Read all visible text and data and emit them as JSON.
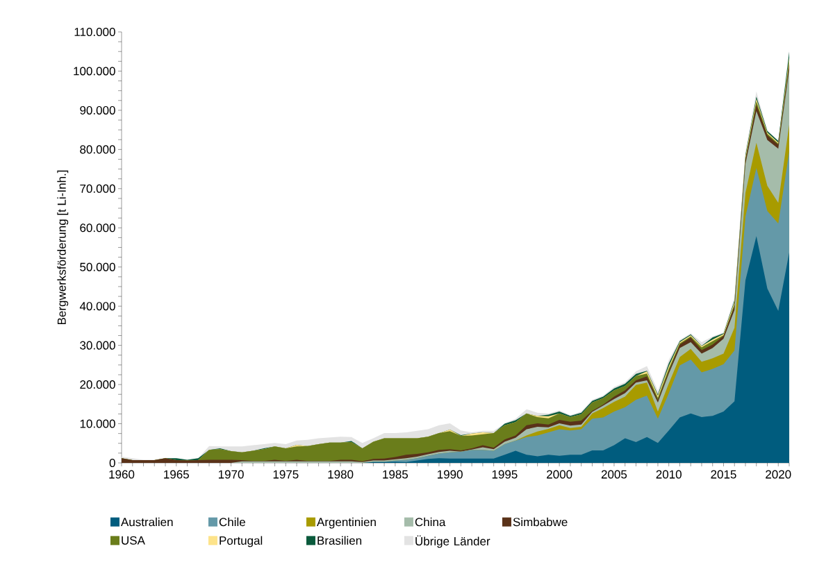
{
  "chart_data": {
    "type": "area",
    "stacked": true,
    "ylabel": "Bergwerksförderung [t Li-Inh.]",
    "legend": "bottom",
    "x": [
      1960,
      1961,
      1962,
      1963,
      1964,
      1965,
      1966,
      1967,
      1968,
      1969,
      1970,
      1971,
      1972,
      1973,
      1974,
      1975,
      1976,
      1977,
      1978,
      1979,
      1980,
      1981,
      1982,
      1983,
      1984,
      1985,
      1986,
      1987,
      1988,
      1989,
      1990,
      1991,
      1992,
      1993,
      1994,
      1995,
      1996,
      1997,
      1998,
      1999,
      2000,
      2001,
      2002,
      2003,
      2004,
      2005,
      2006,
      2007,
      2008,
      2009,
      2010,
      2011,
      2012,
      2013,
      2014,
      2015,
      2016,
      2017,
      2018,
      2019,
      2020,
      2021
    ],
    "xlim": [
      1960,
      2021
    ],
    "xticks": [
      1960,
      {
        "value": 1961,
        "label": null
      },
      {
        "value": 1962,
        "label": null
      },
      {
        "value": 1963,
        "label": null
      },
      {
        "value": 1964,
        "label": null
      },
      1965,
      {
        "value": 1966,
        "label": null
      },
      {
        "value": 1967,
        "label": null
      },
      {
        "value": 1968,
        "label": null
      },
      {
        "value": 1969,
        "label": null
      },
      1970,
      {
        "value": 1971,
        "label": null
      },
      {
        "value": 1972,
        "label": null
      },
      {
        "value": 1973,
        "label": null
      },
      {
        "value": 1974,
        "label": null
      },
      1975,
      {
        "value": 1976,
        "label": null
      },
      {
        "value": 1977,
        "label": null
      },
      {
        "value": 1978,
        "label": null
      },
      {
        "value": 1979,
        "label": null
      },
      1980,
      {
        "value": 1981,
        "label": null
      },
      {
        "value": 1982,
        "label": null
      },
      {
        "value": 1983,
        "label": null
      },
      {
        "value": 1984,
        "label": null
      },
      1985,
      {
        "value": 1986,
        "label": null
      },
      {
        "value": 1987,
        "label": null
      },
      {
        "value": 1988,
        "label": null
      },
      {
        "value": 1989,
        "label": null
      },
      1990,
      {
        "value": 1991,
        "label": null
      },
      {
        "value": 1992,
        "label": null
      },
      {
        "value": 1993,
        "label": null
      },
      {
        "value": 1994,
        "label": null
      },
      1995,
      {
        "value": 1996,
        "label": null
      },
      {
        "value": 1997,
        "label": null
      },
      {
        "value": 1998,
        "label": null
      },
      {
        "value": 1999,
        "label": null
      },
      2000,
      {
        "value": 2001,
        "label": null
      },
      {
        "value": 2002,
        "label": null
      },
      {
        "value": 2003,
        "label": null
      },
      {
        "value": 2004,
        "label": null
      },
      2005,
      {
        "value": 2006,
        "label": null
      },
      {
        "value": 2007,
        "label": null
      },
      {
        "value": 2008,
        "label": null
      },
      {
        "value": 2009,
        "label": null
      },
      2010,
      {
        "value": 2011,
        "label": null
      },
      {
        "value": 2012,
        "label": null
      },
      {
        "value": 2013,
        "label": null
      },
      {
        "value": 2014,
        "label": null
      },
      2015,
      {
        "value": 2016,
        "label": null
      },
      {
        "value": 2017,
        "label": null
      },
      {
        "value": 2018,
        "label": null
      },
      {
        "value": 2019,
        "label": null
      },
      2020,
      {
        "value": 2021,
        "label": null
      }
    ],
    "ylim": [
      0,
      110000
    ],
    "yticks": [
      0,
      {
        "value": 2500,
        "label": null
      },
      {
        "value": 5000,
        "label": null
      },
      {
        "value": 7500,
        "label": null
      },
      {
        "value": 10000,
        "label": "10.000"
      },
      {
        "value": 12500,
        "label": null
      },
      {
        "value": 15000,
        "label": null
      },
      {
        "value": 17500,
        "label": null
      },
      {
        "value": 20000,
        "label": "20.000"
      },
      {
        "value": 22500,
        "label": null
      },
      {
        "value": 25000,
        "label": null
      },
      {
        "value": 27500,
        "label": null
      },
      {
        "value": 30000,
        "label": "30.000"
      },
      {
        "value": 32500,
        "label": null
      },
      {
        "value": 35000,
        "label": null
      },
      {
        "value": 37500,
        "label": null
      },
      {
        "value": 40000,
        "label": "40.000"
      },
      {
        "value": 42500,
        "label": null
      },
      {
        "value": 45000,
        "label": null
      },
      {
        "value": 47500,
        "label": null
      },
      {
        "value": 50000,
        "label": "50.000"
      },
      {
        "value": 52500,
        "label": null
      },
      {
        "value": 55000,
        "label": null
      },
      {
        "value": 57500,
        "label": null
      },
      {
        "value": 60000,
        "label": "60.000"
      },
      {
        "value": 62500,
        "label": null
      },
      {
        "value": 65000,
        "label": null
      },
      {
        "value": 67500,
        "label": null
      },
      {
        "value": 70000,
        "label": "70.000"
      },
      {
        "value": 72500,
        "label": null
      },
      {
        "value": 75000,
        "label": null
      },
      {
        "value": 77500,
        "label": null
      },
      {
        "value": 80000,
        "label": "80.000"
      },
      {
        "value": 82500,
        "label": null
      },
      {
        "value": 85000,
        "label": null
      },
      {
        "value": 87500,
        "label": null
      },
      {
        "value": 90000,
        "label": "90.000"
      },
      {
        "value": 92500,
        "label": null
      },
      {
        "value": 95000,
        "label": null
      },
      {
        "value": 97500,
        "label": null
      },
      {
        "value": 100000,
        "label": "100.000"
      },
      {
        "value": 102500,
        "label": null
      },
      {
        "value": 105000,
        "label": null
      },
      {
        "value": 107500,
        "label": null
      },
      {
        "value": 110000,
        "label": "110.000"
      }
    ],
    "series": [
      {
        "name": "Australien",
        "color": "#005c7e",
        "values": [
          0,
          0,
          0,
          0,
          0,
          0,
          0,
          0,
          0,
          0,
          0,
          0,
          0,
          0,
          0,
          0,
          0,
          0,
          0,
          0,
          0,
          0,
          0,
          200,
          200,
          300,
          200,
          600,
          1000,
          1200,
          1100,
          1100,
          1100,
          1100,
          1100,
          2100,
          3100,
          2100,
          1700,
          2100,
          1800,
          2100,
          2100,
          3200,
          3200,
          4500,
          6300,
          5300,
          6600,
          5100,
          8300,
          11600,
          12600,
          11700,
          12000,
          13100,
          15700,
          46600,
          57900,
          44500,
          38800,
          53700
        ]
      },
      {
        "name": "Chile",
        "color": "#6499a8",
        "values": [
          0,
          0,
          0,
          0,
          0,
          0,
          0,
          0,
          0,
          0,
          0,
          0,
          0,
          0,
          0,
          0,
          0,
          0,
          0,
          0,
          0,
          0,
          0,
          100,
          100,
          300,
          600,
          600,
          800,
          1200,
          1600,
          1800,
          2200,
          2200,
          2000,
          2700,
          2600,
          4500,
          5300,
          5700,
          6800,
          6200,
          6500,
          8100,
          8400,
          8600,
          7900,
          10800,
          10600,
          6200,
          9500,
          13300,
          13800,
          11400,
          12000,
          12100,
          13000,
          16300,
          17400,
          19800,
          22300,
          25800
        ]
      },
      {
        "name": "Argentinien",
        "color": "#a89b00",
        "values": [
          0,
          0,
          0,
          0,
          0,
          0,
          0,
          0,
          0,
          0,
          0,
          0,
          0,
          0,
          0,
          0,
          0,
          0,
          0,
          0,
          0,
          0,
          0,
          0,
          0,
          0,
          0,
          0,
          0,
          0,
          0,
          0,
          0,
          0,
          0,
          0,
          0,
          400,
          1000,
          900,
          1000,
          600,
          600,
          1300,
          2400,
          2500,
          2700,
          3800,
          3300,
          1800,
          2500,
          2100,
          2700,
          2700,
          2700,
          2700,
          5800,
          6000,
          6400,
          6400,
          5300,
          6800
        ]
      },
      {
        "name": "China",
        "color": "#a5bcaa",
        "values": [
          0,
          0,
          0,
          0,
          0,
          0,
          0,
          0,
          0,
          0,
          0,
          400,
          400,
          400,
          400,
          400,
          400,
          400,
          400,
          400,
          400,
          400,
          200,
          300,
          300,
          300,
          400,
          400,
          400,
          400,
          400,
          0,
          100,
          700,
          400,
          600,
          700,
          1600,
          1200,
          400,
          500,
          600,
          600,
          400,
          600,
          700,
          900,
          600,
          600,
          2300,
          2500,
          2300,
          1700,
          2100,
          2600,
          3800,
          4500,
          7400,
          8100,
          11700,
          13800,
          14100
        ]
      },
      {
        "name": "Simbabwe",
        "color": "#5a3219",
        "values": [
          1200,
          700,
          700,
          700,
          1200,
          700,
          600,
          700,
          800,
          800,
          800,
          300,
          100,
          100,
          400,
          100,
          400,
          100,
          100,
          100,
          400,
          400,
          200,
          400,
          500,
          600,
          900,
          700,
          500,
          500,
          400,
          300,
          300,
          500,
          400,
          600,
          600,
          1000,
          900,
          700,
          900,
          1000,
          1000,
          300,
          300,
          600,
          700,
          600,
          1000,
          600,
          600,
          900,
          1200,
          900,
          900,
          700,
          1000,
          1000,
          1600,
          1200,
          1000,
          1200
        ]
      },
      {
        "name": "USA",
        "color": "#6a7d1b",
        "values": [
          0,
          0,
          0,
          0,
          0,
          0,
          0,
          0,
          2500,
          2700,
          2200,
          2000,
          2600,
          3000,
          3400,
          3200,
          3400,
          3800,
          4300,
          4700,
          4400,
          4500,
          3300,
          4400,
          5200,
          4800,
          4200,
          4000,
          4000,
          4300,
          4600,
          3700,
          3300,
          2800,
          3700,
          3600,
          3400,
          3000,
          1600,
          1600,
          1600,
          1200,
          1600,
          2100,
          1600,
          1600,
          1100,
          1100,
          700,
          600,
          700,
          300,
          300,
          700,
          900,
          200,
          500,
          400,
          900,
          400,
          300,
          900
        ]
      },
      {
        "name": "Portugal",
        "color": "#fde38a",
        "values": [
          0,
          0,
          0,
          0,
          0,
          0,
          0,
          0,
          0,
          0,
          0,
          0,
          0,
          0,
          0,
          0,
          400,
          0,
          0,
          0,
          0,
          0,
          0,
          0,
          0,
          0,
          0,
          0,
          0,
          0,
          400,
          0,
          500,
          500,
          0,
          0,
          0,
          0,
          300,
          500,
          0,
          0,
          0,
          0,
          0,
          0,
          0,
          0,
          600,
          600,
          600,
          300,
          300,
          300,
          400,
          300,
          600,
          500,
          600,
          300,
          300,
          900
        ]
      },
      {
        "name": "Brasilien",
        "color": "#0a5a3c",
        "values": [
          0,
          0,
          0,
          0,
          0,
          500,
          200,
          500,
          0,
          200,
          0,
          0,
          0,
          200,
          0,
          0,
          0,
          0,
          0,
          0,
          0,
          300,
          0,
          0,
          0,
          0,
          0,
          0,
          0,
          0,
          0,
          200,
          0,
          0,
          0,
          400,
          500,
          0,
          0,
          400,
          500,
          300,
          400,
          400,
          400,
          500,
          600,
          500,
          100,
          300,
          700,
          300,
          200,
          100,
          500,
          200,
          400,
          400,
          600,
          400,
          400,
          1500
        ]
      },
      {
        "name": "Übrige Länder",
        "color": "#e3e3e3",
        "values": [
          400,
          500,
          100,
          100,
          100,
          0,
          0,
          0,
          1000,
          500,
          1200,
          1500,
          1400,
          1100,
          900,
          1100,
          1100,
          1600,
          1500,
          1300,
          1500,
          1000,
          1400,
          900,
          1300,
          1300,
          1500,
          1900,
          1900,
          2000,
          1600,
          1200,
          300,
          400,
          600,
          100,
          400,
          1100,
          800,
          300,
          300,
          200,
          300,
          300,
          300,
          400,
          400,
          700,
          1200,
          900,
          900,
          300,
          300,
          900,
          300,
          200,
          800,
          900,
          1300,
          200,
          100,
          400
        ]
      }
    ]
  }
}
